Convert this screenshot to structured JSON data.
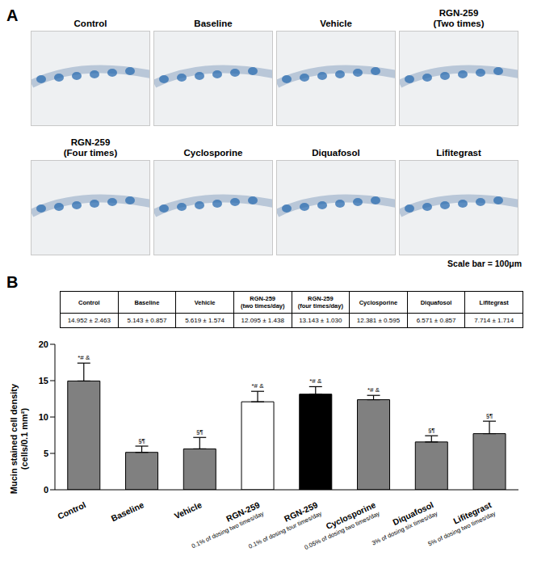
{
  "figure": {
    "panel_a": {
      "label": "A",
      "images": [
        [
          "Control"
        ],
        [
          "Baseline"
        ],
        [
          "Vehicle"
        ],
        [
          "RGN-259",
          "(Two times)"
        ],
        [
          "RGN-259",
          "(Four times)"
        ],
        [
          "Cyclosporine"
        ],
        [
          "Diquafosol"
        ],
        [
          "Lifitegrast"
        ]
      ],
      "scale_bar": "Scale bar = 100μm"
    },
    "panel_b": {
      "label": "B",
      "table": {
        "header": [
          [
            "Control"
          ],
          [
            "Baseline"
          ],
          [
            "Vehicle"
          ],
          [
            "RGN-259",
            "(two times/day)"
          ],
          [
            "RGN-259",
            "(four times/day)"
          ],
          [
            "Cyclosporine"
          ],
          [
            "Diquafosol"
          ],
          [
            "Lifitegrast"
          ]
        ],
        "cells": [
          "14.952 ± 2.463",
          "5.143 ± 0.857",
          "5.619 ± 1.574",
          "12.095 ± 1.438",
          "13.143 ± 1.030",
          "12.381 ± 0.595",
          "6.571 ± 0.857",
          "7.714 ± 1.714"
        ]
      }
    }
  },
  "chart_data": {
    "type": "bar",
    "y_label": [
      "Mucin stained cell density",
      "(cells/0.1 mm²)"
    ],
    "categories": [
      "Control",
      "Baseline",
      "Vehicle",
      "RGN-259",
      "RGN-259",
      "Cyclosporine",
      "Diquafosol",
      "Lifitegrast"
    ],
    "category_notes": [
      null,
      null,
      null,
      "0.1% of dosing two times/day",
      "0.1% of dosing four times/day",
      "0.05% of dosing two times/day",
      "3% of dosing six times/day",
      "5% of dosing two times/day"
    ],
    "values": [
      14.952,
      5.143,
      5.619,
      12.095,
      13.143,
      12.381,
      6.571,
      7.714
    ],
    "errors": [
      2.463,
      0.857,
      1.574,
      1.438,
      1.03,
      0.595,
      0.857,
      1.714
    ],
    "annotations": [
      "*# &",
      "§¶",
      "§¶",
      "*# &",
      "*# &",
      "*# &",
      "§¶",
      "§¶"
    ],
    "colors": [
      "#808080",
      "#808080",
      "#808080",
      "#ffffff",
      "#000000",
      "#808080",
      "#808080",
      "#808080"
    ],
    "ylim": [
      0,
      20
    ],
    "yticks": [
      0,
      5,
      10,
      15,
      20
    ],
    "grid": false
  }
}
